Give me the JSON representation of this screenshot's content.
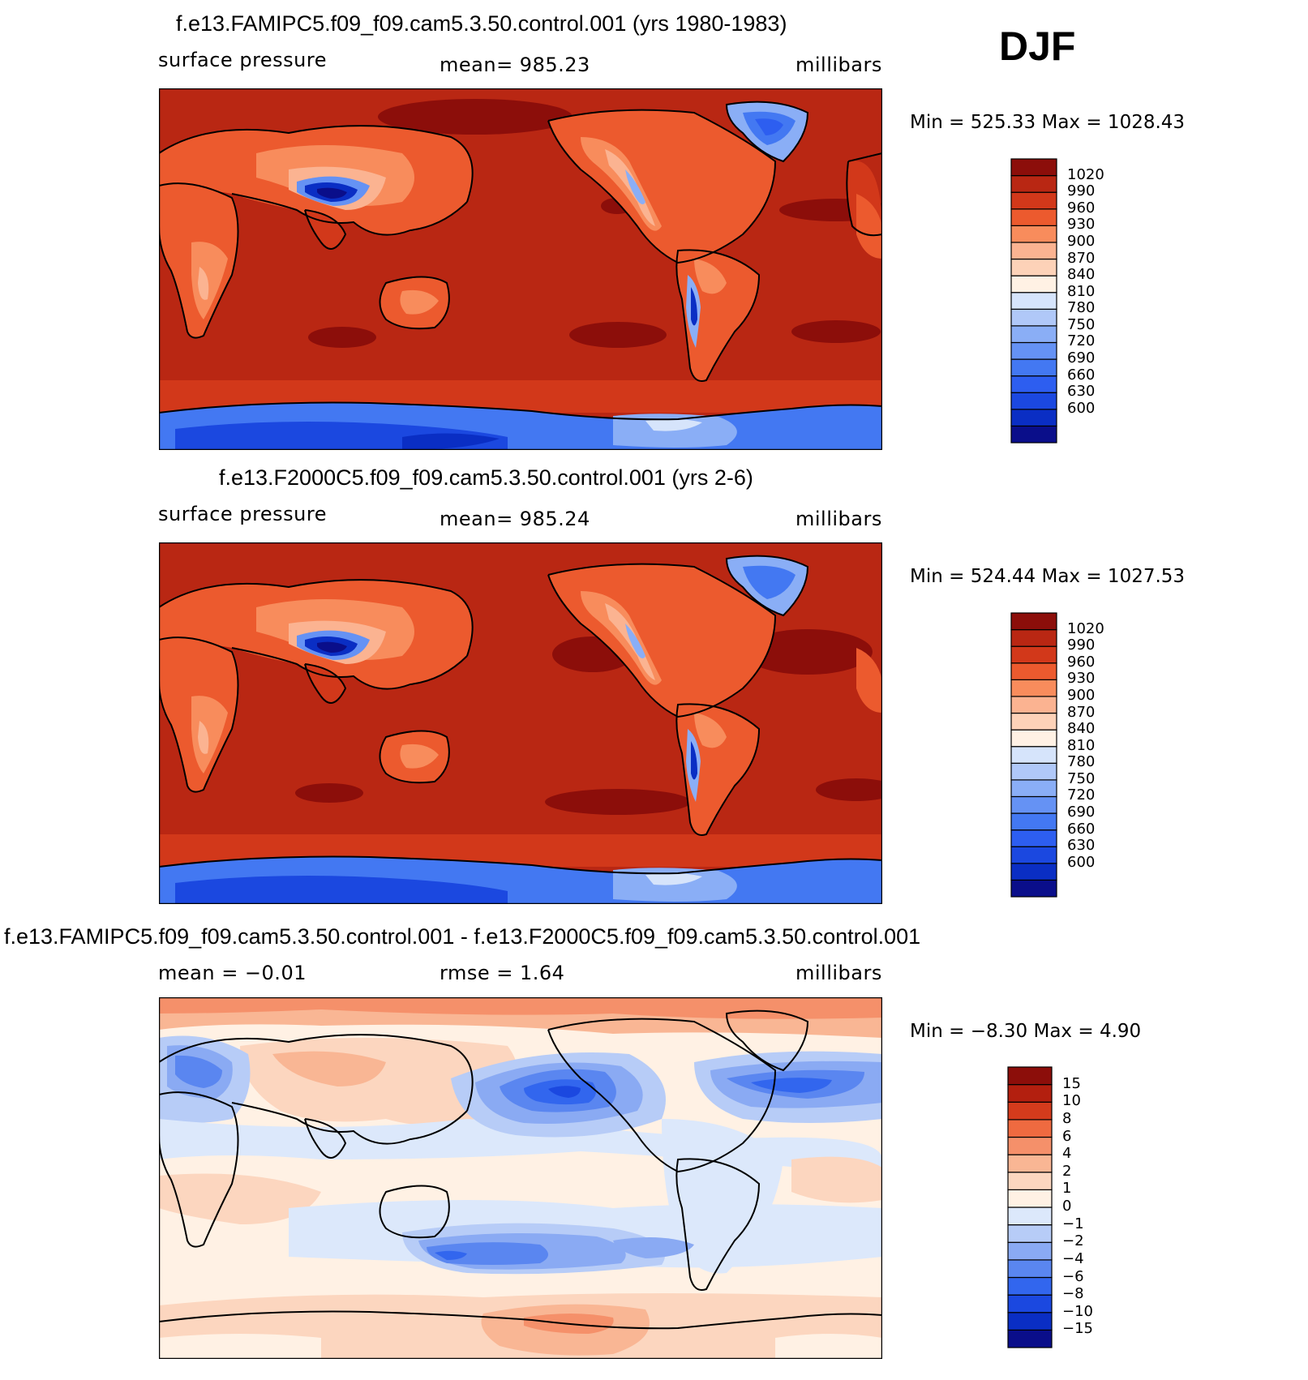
{
  "season": "DJF",
  "palette_abs": [
    "#0a0e8a",
    "#0a2ec4",
    "#1b48e0",
    "#2d5ef0",
    "#4378f2",
    "#6592f4",
    "#8aaef6",
    "#b0c8f8",
    "#d6e4fb",
    "#fff1e4",
    "#fdd2b8",
    "#fbb391",
    "#f88c5c",
    "#ec5a2e",
    "#d2381a",
    "#b92713",
    "#8c0e0a"
  ],
  "palette_diff": [
    "#0a0e8a",
    "#0a2ec4",
    "#1b48e0",
    "#3266ee",
    "#5a86f0",
    "#8aaaf3",
    "#b7ccf7",
    "#dce8fb",
    "#fff1e4",
    "#fcd6bf",
    "#f9b694",
    "#f5906a",
    "#ef6a40",
    "#d43b1c",
    "#b31f0f",
    "#8c0e0a"
  ],
  "panels": [
    {
      "title": "f.e13.FAMIPC5.f09_f09.cam5.3.50.control.001 (yrs 1980-1983)",
      "left_label": "surface pressure",
      "center_label": "mean= 985.23",
      "right_label": "millibars",
      "minmax": "Min = 525.33 Max = 1028.43",
      "colorbar_labels": [
        "1020",
        "990",
        "960",
        "930",
        "900",
        "870",
        "840",
        "810",
        "780",
        "750",
        "720",
        "690",
        "660",
        "630",
        "600"
      ]
    },
    {
      "title": "f.e13.F2000C5.f09_f09.cam5.3.50.control.001 (yrs 2-6)",
      "left_label": "surface pressure",
      "center_label": "mean= 985.24",
      "right_label": "millibars",
      "minmax": "Min = 524.44 Max = 1027.53",
      "colorbar_labels": [
        "1020",
        "990",
        "960",
        "930",
        "900",
        "870",
        "840",
        "810",
        "780",
        "750",
        "720",
        "690",
        "660",
        "630",
        "600"
      ]
    },
    {
      "title": "f.e13.FAMIPC5.f09_f09.cam5.3.50.control.001 - f.e13.F2000C5.f09_f09.cam5.3.50.control.001",
      "left_label": "mean =  −0.01",
      "center_label": "rmse =     1.64",
      "right_label": "millibars",
      "minmax": "Min =   −8.30 Max =     4.90",
      "colorbar_labels": [
        "15",
        "10",
        "8",
        "6",
        "4",
        "2",
        "1",
        "0",
        "−1",
        "−2",
        "−4",
        "−6",
        "−8",
        "−10",
        "−15"
      ]
    }
  ]
}
